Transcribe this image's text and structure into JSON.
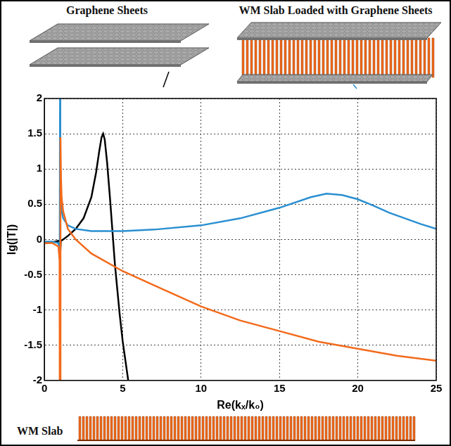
{
  "chart_data": {
    "type": "line",
    "x_label": "Re(kₓ/k₀)",
    "y_label": "lg(|T|)",
    "xlim": [
      0,
      25
    ],
    "xticks": [
      0,
      5,
      10,
      15,
      20,
      25
    ],
    "ylim": [
      -2,
      2
    ],
    "yticks": [
      -2,
      -1.5,
      -1,
      -0.5,
      0,
      0.5,
      1,
      1.5,
      2
    ],
    "grid": true,
    "series": [
      {
        "name": "Graphene Sheets",
        "color": "#000000",
        "x": [
          0,
          0.5,
          0.9,
          1.0,
          1.05,
          1.2,
          1.5,
          2,
          2.5,
          3,
          3.3,
          3.5,
          3.65,
          3.75,
          3.85,
          4,
          4.2,
          4.5,
          4.8,
          5,
          5.35
        ],
        "values": [
          -0.05,
          -0.04,
          -0.02,
          -0.25,
          -0.02,
          0.0,
          0.05,
          0.15,
          0.3,
          0.6,
          0.95,
          1.25,
          1.45,
          1.5,
          1.42,
          1.1,
          0.55,
          -0.35,
          -1.05,
          -1.45,
          -2.0
        ]
      },
      {
        "name": "WM Slab Loaded with Graphene Sheets",
        "color": "#2a8fd0",
        "x": [
          0,
          0.5,
          0.9,
          0.98,
          1.0,
          1.02,
          1.05,
          1.1,
          1.2,
          1.5,
          2,
          3,
          4,
          5,
          7,
          10,
          12.5,
          15,
          17,
          18,
          19,
          20,
          21,
          22,
          23,
          24,
          25
        ],
        "values": [
          -0.03,
          -0.03,
          -0.05,
          -0.25,
          2.0,
          1.0,
          0.6,
          0.4,
          0.3,
          0.2,
          0.15,
          0.12,
          0.12,
          0.12,
          0.14,
          0.2,
          0.3,
          0.45,
          0.6,
          0.65,
          0.63,
          0.57,
          0.48,
          0.38,
          0.3,
          0.22,
          0.15
        ]
      },
      {
        "name": "WM Slab",
        "color": "#f26a1b",
        "x": [
          0,
          0.5,
          0.9,
          0.97,
          0.98,
          1.0,
          1.03,
          1.06,
          1.1,
          1.2,
          1.5,
          2,
          3,
          5,
          7.5,
          10,
          12.5,
          15,
          17.5,
          20,
          22.5,
          25
        ],
        "values": [
          -0.05,
          -0.05,
          -0.1,
          -0.3,
          -2.0,
          -2.0,
          1.45,
          0.9,
          0.6,
          0.4,
          0.15,
          0.0,
          -0.2,
          -0.45,
          -0.7,
          -0.95,
          -1.15,
          -1.3,
          -1.45,
          -1.55,
          -1.65,
          -1.72
        ]
      }
    ]
  }
}
